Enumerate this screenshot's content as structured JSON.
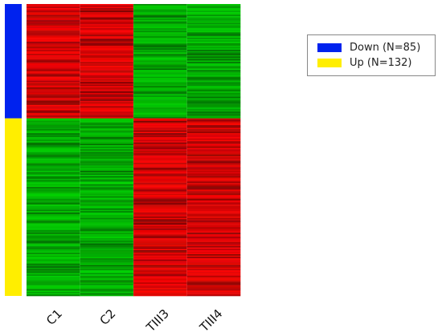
{
  "chart_data": {
    "type": "heatmap",
    "title": "",
    "xlabel": "",
    "ylabel": "",
    "columns": [
      "C1",
      "C2",
      "TIII3",
      "TIII4"
    ],
    "row_groups": [
      {
        "name": "Down",
        "count": 85,
        "label": "Down (N=85)",
        "color": "#0022ee",
        "pattern_by_column": [
          "red",
          "red",
          "green",
          "green"
        ]
      },
      {
        "name": "Up",
        "count": 132,
        "label": "Up (N=132)",
        "color": "#ffee00",
        "pattern_by_column": [
          "green",
          "green",
          "red",
          "red"
        ]
      }
    ],
    "color_scale": {
      "low": "#00c000",
      "mid": "#000000",
      "high": "#ff1a1a"
    },
    "legend_position": "top-right",
    "grid": false
  },
  "legend": {
    "items": [
      {
        "label": "Down (N=85)",
        "color": "#0022ee"
      },
      {
        "label": "Up (N=132)",
        "color": "#ffee00"
      }
    ]
  }
}
